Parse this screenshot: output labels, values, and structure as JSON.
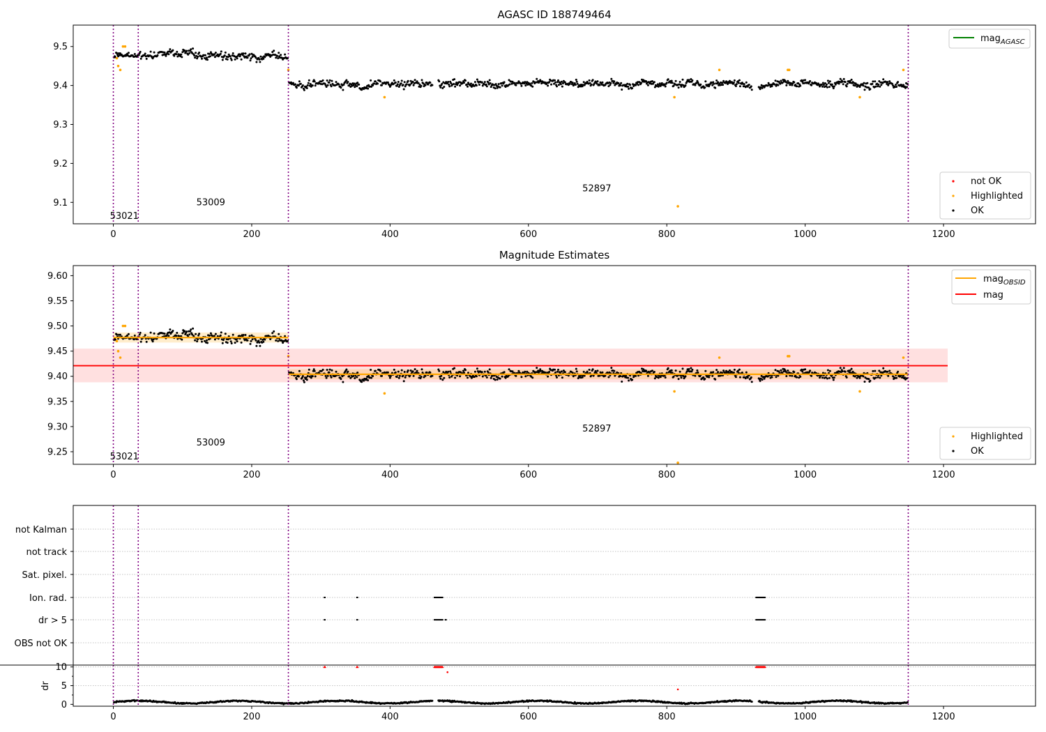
{
  "colors": {
    "ok": "#000000",
    "not_ok": "#ff0000",
    "highlighted": "#ffa500",
    "mag_agasc": "#008000",
    "mag_obsid": "#ffa500",
    "mag": "#ff0000",
    "obs_boundary": "#800080"
  },
  "chart_data": [
    {
      "type": "scatter",
      "title": "AGASC ID 188749464",
      "xlim": [
        -58,
        1333
      ],
      "ylim": [
        9.045,
        9.555
      ],
      "xticks": [
        "0",
        "200",
        "400",
        "600",
        "800",
        "1000",
        "1200"
      ],
      "yticks": [
        "9.1",
        "9.2",
        "9.3",
        "9.4",
        "9.5"
      ],
      "obs_boundaries": [
        0,
        36,
        253,
        1149
      ],
      "annotations": [
        {
          "text": "53021",
          "x": -5,
          "y": 9.065
        },
        {
          "text": "53009",
          "x": 120,
          "y": 9.1
        },
        {
          "text": "52897",
          "x": 678,
          "y": 9.135
        }
      ],
      "segments": [
        {
          "x_start": 0,
          "x_end": 36,
          "level": 9.475,
          "spread": 0.008
        },
        {
          "x_start": 36,
          "x_end": 253,
          "level": 9.478,
          "spread": 0.012
        },
        {
          "x_start": 253,
          "x_end": 1149,
          "level": 9.403,
          "spread": 0.011
        }
      ],
      "highlighted_points": [
        [
          5,
          9.47
        ],
        [
          7,
          9.45
        ],
        [
          10,
          9.44
        ],
        [
          14,
          9.5
        ],
        [
          17,
          9.5
        ],
        [
          253,
          9.44
        ],
        [
          392,
          9.37
        ],
        [
          811,
          9.37
        ],
        [
          816,
          9.09
        ],
        [
          876,
          9.44
        ],
        [
          975,
          9.44
        ],
        [
          977,
          9.44
        ],
        [
          1079,
          9.37
        ],
        [
          1142,
          9.44
        ]
      ],
      "legend_upper": {
        "position": "upper right",
        "entries": [
          {
            "label": "mag",
            "sub": "AGASC",
            "color": "#008000"
          }
        ]
      },
      "legend_lower": {
        "position": "lower right",
        "entries": [
          {
            "label": "not OK",
            "color": "#ff0000"
          },
          {
            "label": "Highlighted",
            "color": "#ffa500"
          },
          {
            "label": "OK",
            "color": "#000000"
          }
        ]
      }
    },
    {
      "type": "scatter",
      "title": "Magnitude Estimates",
      "xlim": [
        -58,
        1333
      ],
      "ylim": [
        9.225,
        9.62
      ],
      "xticks": [
        "0",
        "200",
        "400",
        "600",
        "800",
        "1000",
        "1200"
      ],
      "yticks": [
        "9.25",
        "9.30",
        "9.35",
        "9.40",
        "9.45",
        "9.50",
        "9.55",
        "9.60"
      ],
      "obs_boundaries": [
        0,
        36,
        253,
        1149
      ],
      "annotations": [
        {
          "text": "53021",
          "x": -5,
          "y": 9.24
        },
        {
          "text": "53009",
          "x": 120,
          "y": 9.268
        },
        {
          "text": "52897",
          "x": 678,
          "y": 9.296
        }
      ],
      "mag": {
        "value": 9.421,
        "band": [
          9.388,
          9.455
        ],
        "x_start": -58,
        "x_end": 1206
      },
      "mag_obsid": [
        {
          "x_start": 0,
          "x_end": 253,
          "value": 9.477,
          "band": [
            9.467,
            9.487
          ]
        },
        {
          "x_start": 253,
          "x_end": 1149,
          "value": 9.404,
          "band": [
            9.394,
            9.414
          ]
        }
      ],
      "highlighted_points": [
        [
          5,
          9.47
        ],
        [
          7,
          9.45
        ],
        [
          10,
          9.437
        ],
        [
          14,
          9.5
        ],
        [
          17,
          9.5
        ],
        [
          253,
          9.44
        ],
        [
          392,
          9.366
        ],
        [
          811,
          9.37
        ],
        [
          816,
          9.228
        ],
        [
          876,
          9.437
        ],
        [
          975,
          9.44
        ],
        [
          977,
          9.44
        ],
        [
          1079,
          9.37
        ],
        [
          1142,
          9.437
        ]
      ],
      "legend_upper": {
        "position": "upper right",
        "entries": [
          {
            "label": "mag",
            "sub": "OBSID",
            "color": "#ffa500"
          },
          {
            "label": "mag",
            "color": "#ff0000"
          }
        ]
      },
      "legend_lower": {
        "position": "lower right",
        "entries": [
          {
            "label": "Highlighted",
            "color": "#ffa500"
          },
          {
            "label": "OK",
            "color": "#000000"
          }
        ]
      }
    },
    {
      "type": "scatter",
      "xlim": [
        -58,
        1333
      ],
      "xticks": [
        "0",
        "200",
        "400",
        "600",
        "800",
        "1000",
        "1200"
      ],
      "obs_boundaries": [
        0,
        36,
        253,
        1149
      ],
      "flag_rows": [
        "not Kalman",
        "not track",
        "Sat. pixel.",
        "Ion. rad.",
        "dr > 5",
        "OBS not OK"
      ],
      "flag_points": {
        "Ion. rad.": [
          [
            305,
            306
          ],
          [
            352,
            353
          ],
          [
            464,
            476
          ],
          [
            929,
            942
          ]
        ],
        "dr > 5": [
          [
            305,
            306
          ],
          [
            352,
            353
          ],
          [
            464,
            476
          ],
          [
            480,
            481
          ],
          [
            929,
            942
          ]
        ]
      },
      "dr": {
        "ylabel": "dr",
        "ylim": [
          -0.5,
          10.5
        ],
        "yticks": [
          "0",
          "5",
          "10"
        ],
        "clipped_points_x": [
          [
            305,
            306
          ],
          [
            352,
            353
          ],
          [
            464,
            476
          ],
          [
            929,
            942
          ]
        ],
        "outliers": [
          [
            483,
            8.6
          ],
          [
            816,
            4.0
          ]
        ],
        "baseline": 0.6
      }
    }
  ]
}
